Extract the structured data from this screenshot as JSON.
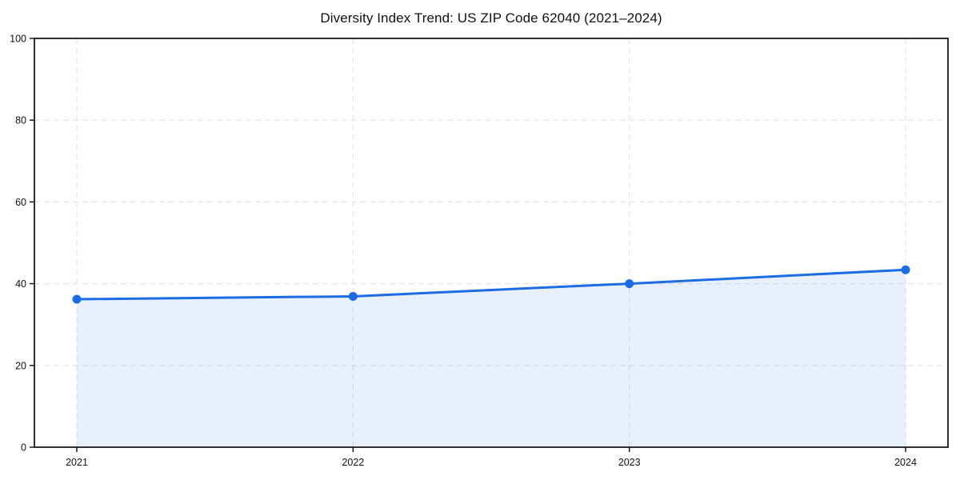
{
  "chart_data": {
    "type": "line",
    "title": "Diversity Index Trend: US ZIP Code 62040 (2021–2024)",
    "xlabel": "",
    "ylabel": "",
    "x": [
      "2021",
      "2022",
      "2023",
      "2024"
    ],
    "series": [
      {
        "name": "Diversity Index",
        "values": [
          36.2,
          36.9,
          40.0,
          43.4
        ]
      }
    ],
    "ylim": [
      0,
      100
    ],
    "yticks": [
      0,
      20,
      40,
      60,
      80,
      100
    ],
    "grid": true,
    "grid_style": "dashed",
    "legend_position": "none",
    "area_fill": true,
    "markers": true,
    "colors": {
      "line": "#1c6ce3",
      "marker": "#1c6ce3",
      "area": "rgba(28,108,227,0.10)",
      "gridline": "#e4e4e4",
      "axis_border": "#1a1a1a",
      "tick_text": "#111111",
      "background": "#ffffff"
    }
  }
}
